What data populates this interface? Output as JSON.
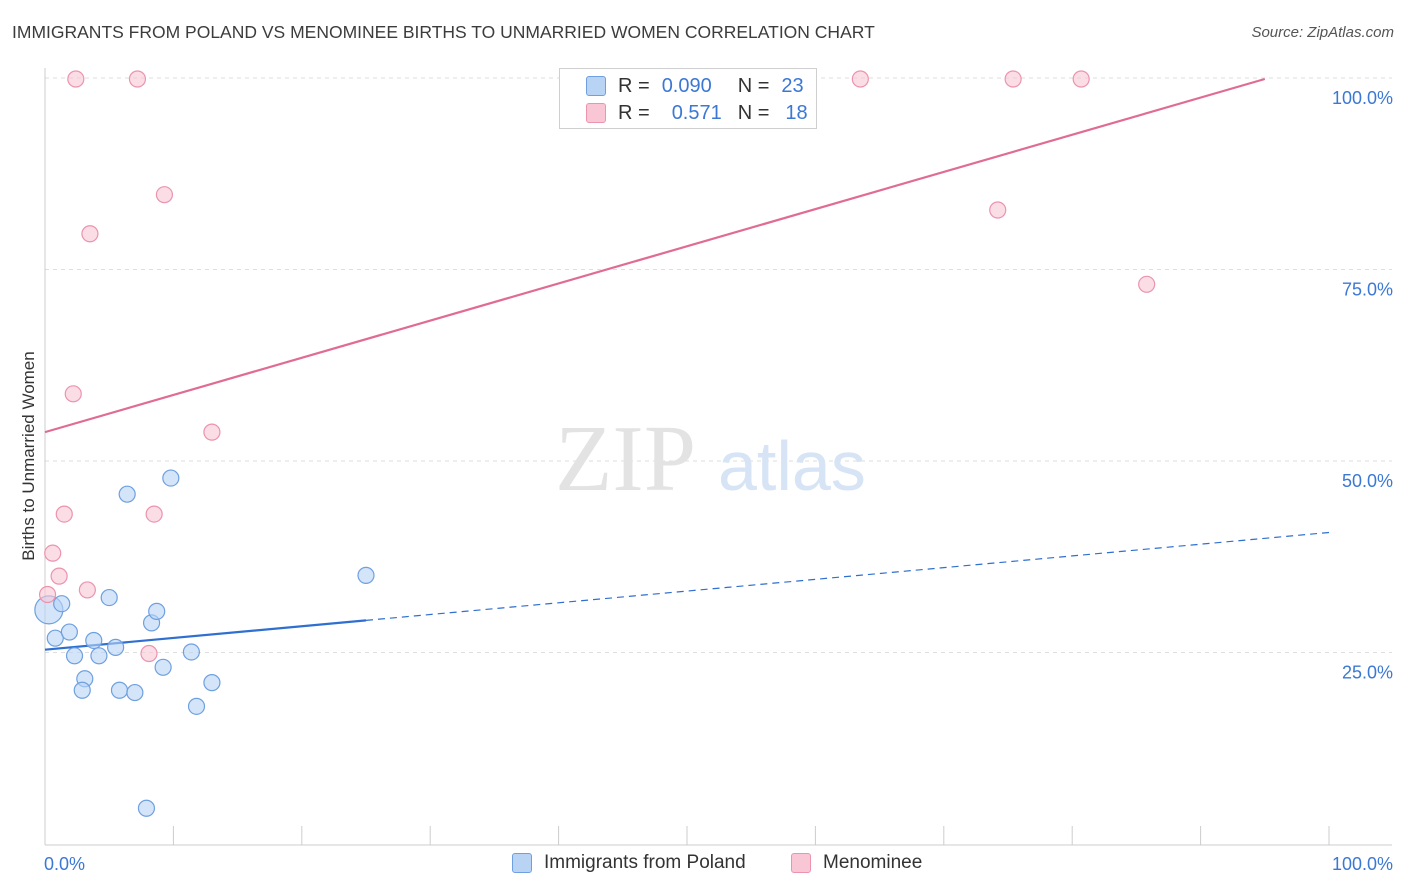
{
  "header": {
    "title": "IMMIGRANTS FROM POLAND VS MENOMINEE BIRTHS TO UNMARRIED WOMEN CORRELATION CHART",
    "source": "Source: ZipAtlas.com"
  },
  "watermark": {
    "zip": "ZIP",
    "atlas": "atlas"
  },
  "legend": {
    "rows": [
      {
        "r_label": "R =",
        "r_value": "0.090",
        "n_label": "N =",
        "n_value": "23"
      },
      {
        "r_label": "R =",
        "r_value": "0.571",
        "n_label": "N =",
        "n_value": "18"
      }
    ]
  },
  "chart_data": {
    "type": "scatter",
    "ylabel": "Births to Unmarried Women",
    "xlim": [
      0,
      100
    ],
    "ylim": [
      0,
      100
    ],
    "x_tick_labels": [
      "0.0%",
      "100.0%"
    ],
    "y_ticks": [
      {
        "value": 25,
        "label": "25.0%"
      },
      {
        "value": 50,
        "label": "50.0%"
      },
      {
        "value": 75,
        "label": "75.0%"
      },
      {
        "value": 100,
        "label": "100.0%"
      }
    ],
    "grid": true,
    "colors": {
      "poland_fill": "#b9d3f5",
      "poland_stroke": "#6ea0e0",
      "poland_line": "#2f6fd0",
      "menominee_fill": "#f9c6d5",
      "menominee_stroke": "#ec93ae",
      "menominee_line": "#e06b93",
      "tick_label": "#3b78d4"
    },
    "series": [
      {
        "name": "Immigrants from Poland",
        "points": [
          {
            "x": 0.3,
            "y": 30.7,
            "size": 28
          },
          {
            "x": 1.3,
            "y": 31.5
          },
          {
            "x": 0.8,
            "y": 27.0
          },
          {
            "x": 1.9,
            "y": 27.8
          },
          {
            "x": 2.3,
            "y": 24.7
          },
          {
            "x": 3.1,
            "y": 21.7
          },
          {
            "x": 2.9,
            "y": 20.2
          },
          {
            "x": 3.8,
            "y": 26.7
          },
          {
            "x": 4.2,
            "y": 24.7
          },
          {
            "x": 5.0,
            "y": 32.3
          },
          {
            "x": 5.5,
            "y": 25.8
          },
          {
            "x": 5.8,
            "y": 20.2
          },
          {
            "x": 6.4,
            "y": 45.8
          },
          {
            "x": 7.0,
            "y": 19.9
          },
          {
            "x": 7.9,
            "y": 4.8
          },
          {
            "x": 8.3,
            "y": 29.0
          },
          {
            "x": 8.7,
            "y": 30.5
          },
          {
            "x": 9.2,
            "y": 23.2
          },
          {
            "x": 9.8,
            "y": 47.9
          },
          {
            "x": 11.4,
            "y": 25.2
          },
          {
            "x": 11.8,
            "y": 18.1
          },
          {
            "x": 13.0,
            "y": 21.2
          },
          {
            "x": 25.0,
            "y": 35.2
          }
        ],
        "trend": {
          "x0": 0,
          "y0": 25.5,
          "x1": 100,
          "y1": 40.8,
          "solid_until_x": 25
        }
      },
      {
        "name": "Menominee",
        "points": [
          {
            "x": 0.2,
            "y": 32.7
          },
          {
            "x": 0.6,
            "y": 38.1
          },
          {
            "x": 1.1,
            "y": 35.1
          },
          {
            "x": 1.5,
            "y": 43.2
          },
          {
            "x": 2.2,
            "y": 58.9
          },
          {
            "x": 2.4,
            "y": 100.0
          },
          {
            "x": 3.3,
            "y": 33.3
          },
          {
            "x": 3.5,
            "y": 79.8
          },
          {
            "x": 7.2,
            "y": 100.0
          },
          {
            "x": 8.1,
            "y": 25.0
          },
          {
            "x": 8.5,
            "y": 43.2
          },
          {
            "x": 9.3,
            "y": 84.9
          },
          {
            "x": 13.0,
            "y": 53.9
          },
          {
            "x": 63.5,
            "y": 100.0
          },
          {
            "x": 74.2,
            "y": 82.9
          },
          {
            "x": 75.4,
            "y": 100.0
          },
          {
            "x": 80.7,
            "y": 100.0
          },
          {
            "x": 85.8,
            "y": 73.2
          }
        ],
        "trend": {
          "x0": 0,
          "y0": 53.9,
          "x1": 95,
          "y1": 100.0
        }
      }
    ]
  }
}
